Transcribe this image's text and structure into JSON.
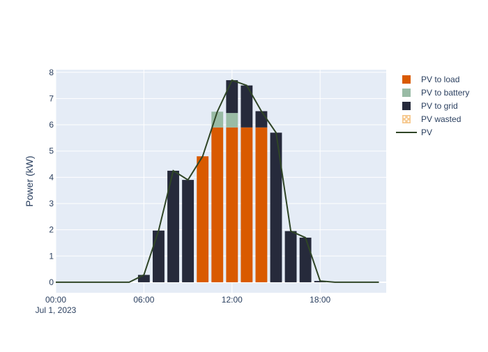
{
  "chart_data": {
    "type": "bar",
    "barmode": "stack",
    "title": "",
    "xlabel": "",
    "ylabel": "Power (kW)",
    "x": [
      "00:00",
      "01:00",
      "02:00",
      "03:00",
      "04:00",
      "05:00",
      "06:00",
      "07:00",
      "08:00",
      "09:00",
      "10:00",
      "11:00",
      "12:00",
      "13:00",
      "14:00",
      "15:00",
      "16:00",
      "17:00",
      "18:00",
      "19:00",
      "20:00",
      "21:00",
      "22:00"
    ],
    "x_range": [
      "2023-07-01 00:00",
      "2023-07-01 22:30"
    ],
    "ylim": [
      -0.4,
      8.1
    ],
    "y_ticks": [
      0,
      1,
      2,
      3,
      4,
      5,
      6,
      7,
      8
    ],
    "x_ticks": [
      {
        "value": "00:00",
        "label": "00:00",
        "sublabel": "Jul 1, 2023"
      },
      {
        "value": "06:00",
        "label": "06:00",
        "sublabel": ""
      },
      {
        "value": "12:00",
        "label": "12:00",
        "sublabel": ""
      },
      {
        "value": "18:00",
        "label": "18:00",
        "sublabel": ""
      }
    ],
    "grid": true,
    "plot_background": "#e5ecf6",
    "legend_position": "top-right",
    "series": [
      {
        "name": "PV to load",
        "kind": "bar",
        "color": "#d95a00",
        "values": [
          0,
          0,
          0,
          0,
          0,
          0,
          0,
          0,
          0,
          0,
          4.8,
          5.9,
          5.9,
          5.9,
          5.9,
          0,
          0,
          0,
          0,
          0,
          0,
          0,
          0
        ]
      },
      {
        "name": "PV to battery",
        "kind": "bar",
        "color": "#99bba5",
        "values": [
          0,
          0,
          0,
          0,
          0,
          0,
          0,
          0,
          0,
          0,
          0,
          0.6,
          0.55,
          0,
          0,
          0,
          0,
          0,
          0,
          0,
          0,
          0,
          0
        ]
      },
      {
        "name": "PV to grid",
        "kind": "bar",
        "color": "#262a3b",
        "values": [
          0,
          0,
          0,
          0,
          0,
          0,
          0.28,
          1.97,
          4.25,
          3.9,
          0,
          0,
          1.25,
          1.6,
          0.62,
          5.7,
          1.95,
          1.7,
          0.05,
          0,
          0,
          0,
          0
        ]
      },
      {
        "name": "PV wasted",
        "kind": "bar",
        "color": "#f6c98f",
        "pattern": "dots",
        "values": [
          0,
          0,
          0,
          0,
          0,
          0,
          0,
          0,
          0,
          0,
          0,
          0,
          0,
          0,
          0,
          0,
          0,
          0,
          0,
          0,
          0,
          0,
          0
        ]
      },
      {
        "name": "PV",
        "kind": "line",
        "color": "#2f4526",
        "values": [
          0,
          0,
          0,
          0,
          0,
          0,
          0.28,
          1.97,
          4.25,
          3.9,
          4.8,
          6.5,
          7.7,
          7.5,
          6.52,
          5.7,
          1.95,
          1.7,
          0.05,
          0,
          0,
          0,
          0
        ]
      }
    ]
  }
}
